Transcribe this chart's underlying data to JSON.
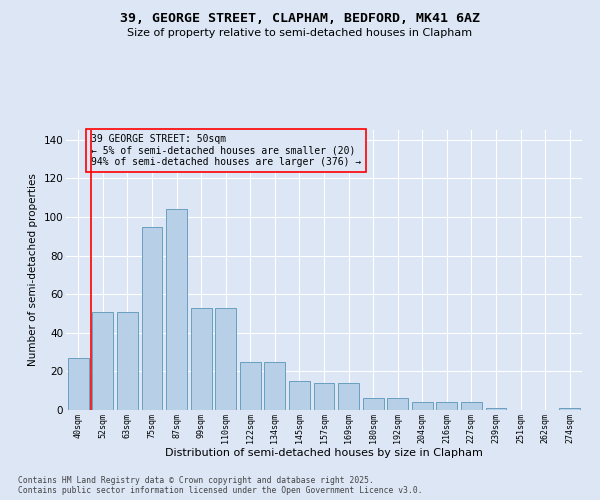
{
  "title1": "39, GEORGE STREET, CLAPHAM, BEDFORD, MK41 6AZ",
  "title2": "Size of property relative to semi-detached houses in Clapham",
  "xlabel": "Distribution of semi-detached houses by size in Clapham",
  "ylabel": "Number of semi-detached properties",
  "categories": [
    "40sqm",
    "52sqm",
    "63sqm",
    "75sqm",
    "87sqm",
    "99sqm",
    "110sqm",
    "122sqm",
    "134sqm",
    "145sqm",
    "157sqm",
    "169sqm",
    "180sqm",
    "192sqm",
    "204sqm",
    "216sqm",
    "227sqm",
    "239sqm",
    "251sqm",
    "262sqm",
    "274sqm"
  ],
  "values": [
    27,
    51,
    51,
    95,
    104,
    53,
    53,
    25,
    25,
    15,
    14,
    14,
    6,
    6,
    4,
    4,
    4,
    1,
    0,
    0,
    1
  ],
  "bar_color": "#b8cfe8",
  "bar_edge_color": "#6a9fc0",
  "annotation_line1": "39 GEORGE STREET: 50sqm",
  "annotation_line2": "← 5% of semi-detached houses are smaller (20)",
  "annotation_line3": "94% of semi-detached houses are larger (376) →",
  "background_color": "#dce6f5",
  "grid_color": "#ffffff",
  "ylim": [
    0,
    145
  ],
  "yticks": [
    0,
    20,
    40,
    60,
    80,
    100,
    120,
    140
  ],
  "footer1": "Contains HM Land Registry data © Crown copyright and database right 2025.",
  "footer2": "Contains public sector information licensed under the Open Government Licence v3.0."
}
